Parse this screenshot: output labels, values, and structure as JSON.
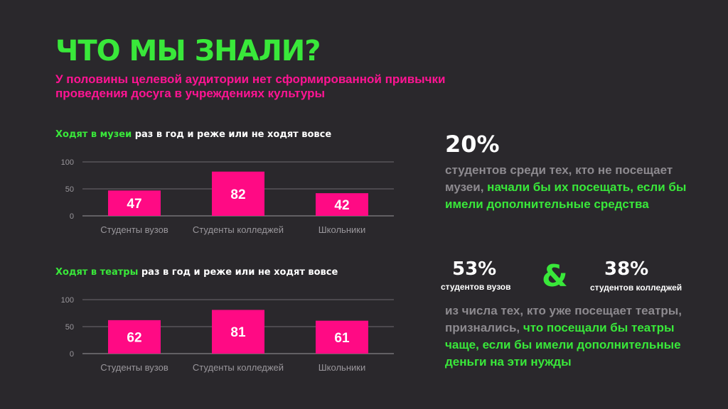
{
  "slide": {
    "title": "ЧТО МЫ ЗНАЛИ?",
    "subtitle": "У половины целевой аудитории нет сформированной привычки проведения досуга в учреждениях культуры"
  },
  "charts": {
    "museums": {
      "title_highlight": "Ходят в музеи",
      "title_rest": " раз в год и реже или не ходят вовсе"
    },
    "theaters": {
      "title_highlight": "Ходят в театры",
      "title_rest": " раз в год и реже или не ходят вовсе"
    }
  },
  "chart_data": [
    {
      "type": "bar",
      "categories": [
        "Студенты вузов",
        "Студенты колледжей",
        "Школьники"
      ],
      "values": [
        47,
        82,
        42
      ],
      "ylim": [
        0,
        100
      ],
      "yticks": [
        0,
        50,
        100
      ],
      "grid": true,
      "bar_color": "#ff0a84"
    },
    {
      "type": "bar",
      "categories": [
        "Студенты вузов",
        "Студенты колледжей",
        "Школьники"
      ],
      "values": [
        62,
        81,
        61
      ],
      "ylim": [
        0,
        100
      ],
      "yticks": [
        0,
        50,
        100
      ],
      "grid": true,
      "bar_color": "#ff0a84"
    }
  ],
  "stats": {
    "museum_pct": "20%",
    "museum_text_grey": "студентов среди тех, кто  не посещает музеи,",
    "museum_text_green": "начали бы их посещать, если бы имели дополнительные средства",
    "uni_pct": "53%",
    "uni_label": "студентов вузов",
    "ampersand": "&",
    "college_pct": "38%",
    "college_label": "студентов колледжей",
    "theater_text_grey": "из числа тех, кто уже посещает театры, признались,",
    "theater_text_green": "что посещали бы театры чаще, если бы имели дополнительные деньги на эти нужды"
  },
  "colors": {
    "accent_green": "#39e83a",
    "accent_pink": "#ff1493",
    "background": "#2a282c",
    "muted_text": "#8d8a8f"
  }
}
